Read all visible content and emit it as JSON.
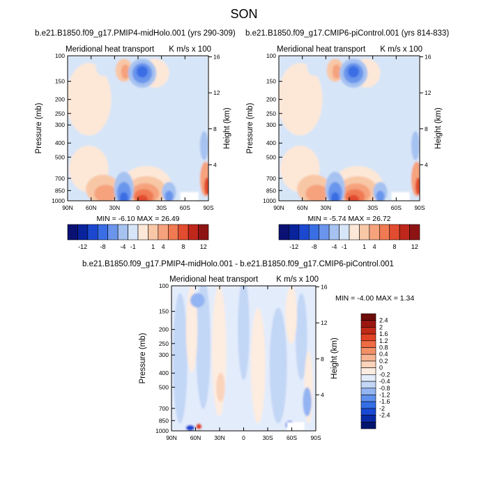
{
  "figure": {
    "title": "SON",
    "left_subtitle": "b.e21.B1850.f09_g17.PMIP4-midHolo.001 (yrs 290-309)",
    "right_subtitle": "b.e21.B1850.f09_g17.CMIP6-piControl.001 (yrs 814-833)",
    "diff_subtitle": "b.e21.B1850.f09_g17.PMIP4-midHolo.001 - b.e21.B1850.f09_g17.CMIP6-piControl.001"
  },
  "colors": {
    "absolute_palette": [
      "#0a1172",
      "#08239c",
      "#1c48cf",
      "#3a6ee4",
      "#6b95ec",
      "#a6c2f1",
      "#d7e5f8",
      "#fde8d8",
      "#f8c7a6",
      "#f5a27d",
      "#f07a52",
      "#e24c2f",
      "#c0271b",
      "#8e1414"
    ],
    "diff_palette": [
      "#00156e",
      "#0a2aa6",
      "#1a49d4",
      "#356fe6",
      "#6090ee",
      "#93b4f2",
      "#c2d6f6",
      "#e3ecfb",
      "#fdece0",
      "#fad3bb",
      "#f6b492",
      "#f39068",
      "#ee6b43",
      "#e04424",
      "#c22a18",
      "#9b1610",
      "#6e0c0a"
    ]
  },
  "chart_data": [
    {
      "type": "heatmap",
      "panel": "left",
      "title": "Meridional heat transport",
      "units": "K m/s x 100",
      "xlabel": "",
      "ylabel": "Pressure (mb)",
      "ylabel_right": "Height (km)",
      "x_ticks": [
        "90N",
        "60N",
        "30N",
        "0",
        "30S",
        "60S",
        "90S"
      ],
      "y_ticks": [
        100,
        150,
        200,
        250,
        300,
        400,
        500,
        700,
        850,
        1000
      ],
      "y_right_ticks": [
        16,
        12,
        8,
        4
      ],
      "min_label": "MIN = -6.10  MAX = 26.49",
      "colorbar_labels": [
        "-12",
        "-8",
        "-4",
        "-1",
        "1",
        "4",
        "8",
        "12"
      ]
    },
    {
      "type": "heatmap",
      "panel": "right",
      "title": "Meridional heat transport",
      "units": "K m/s x 100",
      "xlabel": "",
      "ylabel": "Pressure (mb)",
      "ylabel_right": "Height (km)",
      "x_ticks": [
        "90N",
        "60N",
        "30N",
        "0",
        "30S",
        "60S",
        "90S"
      ],
      "y_ticks": [
        100,
        150,
        200,
        250,
        300,
        400,
        500,
        700,
        850,
        1000
      ],
      "y_right_ticks": [
        16,
        12,
        8,
        4
      ],
      "min_label": "MIN = -5.74  MAX = 26.72",
      "colorbar_labels": [
        "-12",
        "-8",
        "-4",
        "-1",
        "1",
        "4",
        "8",
        "12"
      ]
    },
    {
      "type": "heatmap",
      "panel": "difference",
      "title": "Meridional heat transport",
      "units": "K m/s x 100",
      "xlabel": "",
      "ylabel": "Pressure (mb)",
      "ylabel_right": "Height (km)",
      "x_ticks": [
        "90N",
        "60N",
        "30N",
        "0",
        "30S",
        "60S",
        "90S"
      ],
      "y_ticks": [
        100,
        150,
        200,
        250,
        300,
        400,
        500,
        700,
        850,
        1000
      ],
      "y_right_ticks": [
        16,
        12,
        8,
        4
      ],
      "min_label": "MIN = -4.00  MAX =  1.34",
      "colorbar_labels": [
        "2.4",
        "2",
        "1.6",
        "1.2",
        "0.8",
        "0.4",
        "0.2",
        "0",
        "-0.2",
        "-0.4",
        "-0.8",
        "-1.2",
        "-1.6",
        "-2",
        "-2.4"
      ]
    }
  ]
}
